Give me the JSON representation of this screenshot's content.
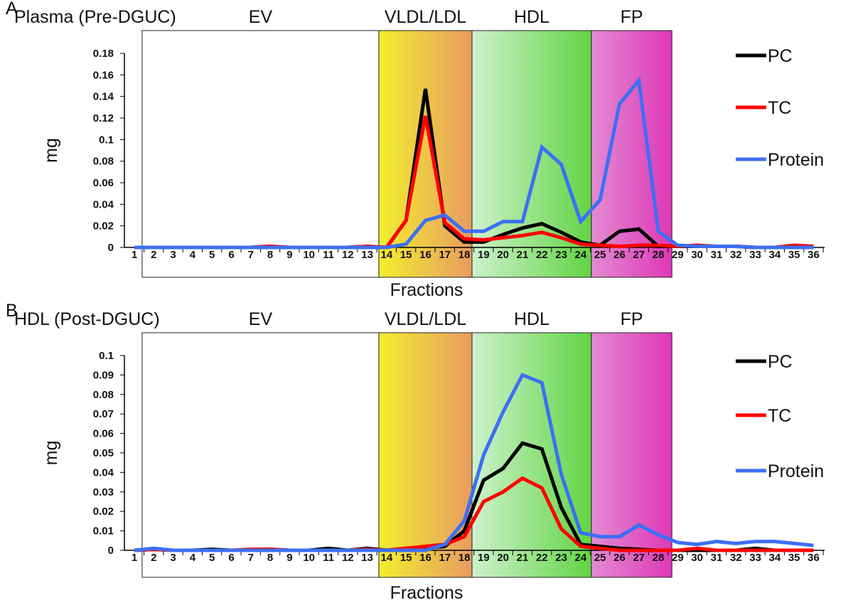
{
  "chart_data": [
    {
      "type": "line",
      "panel_letter": "A",
      "title": "Plasma (Pre-DGUC)",
      "xlabel": "Fractions",
      "ylabel": "mg",
      "ylim": [
        0,
        0.18
      ],
      "yticks": [
        "0",
        "0.02",
        "0.04",
        "0.06",
        "0.08",
        "0.1",
        "0.12",
        "0.14",
        "0.16",
        "0.18"
      ],
      "ytick_values": [
        0,
        0.02,
        0.04,
        0.06,
        0.08,
        0.1,
        0.12,
        0.14,
        0.16,
        0.18
      ],
      "x": [
        1,
        2,
        3,
        4,
        5,
        6,
        7,
        8,
        9,
        10,
        11,
        12,
        13,
        14,
        15,
        16,
        17,
        18,
        19,
        20,
        21,
        22,
        23,
        24,
        25,
        26,
        27,
        28,
        29,
        30,
        31,
        32,
        33,
        34,
        35,
        36
      ],
      "regions": [
        {
          "label": "EV",
          "from": 1.4,
          "to": 13.6
        },
        {
          "label": "VLDL/LDL",
          "from": 13.6,
          "to": 18.4
        },
        {
          "label": "HDL",
          "from": 18.4,
          "to": 24.55
        },
        {
          "label": "FP",
          "from": 24.55,
          "to": 28.7
        }
      ],
      "legend_position": "right",
      "series": [
        {
          "name": "PC",
          "color": "#000000",
          "values": [
            0,
            0,
            0,
            0,
            0,
            0,
            0,
            0.001,
            0,
            0,
            0,
            0,
            0.001,
            0,
            0.025,
            0.147,
            0.02,
            0.005,
            0.005,
            0.012,
            0.018,
            0.022,
            0.014,
            0.005,
            0.002,
            0.015,
            0.017,
            0.001,
            0.001,
            0.001,
            0.001,
            0.001,
            0,
            0,
            0.001,
            0.001
          ]
        },
        {
          "name": "TC",
          "color": "#ff0000",
          "values": [
            0,
            0,
            0,
            0,
            0,
            0,
            0,
            0.001,
            0,
            0,
            0,
            0,
            0.001,
            0,
            0.025,
            0.122,
            0.023,
            0.008,
            0.007,
            0.009,
            0.011,
            0.014,
            0.009,
            0.003,
            0.002,
            0.001,
            0.002,
            0.002,
            0.001,
            0.002,
            0.001,
            0.001,
            0,
            0,
            0.002,
            0.001
          ]
        },
        {
          "name": "Protein",
          "color": "#3d6ff5",
          "values": [
            0,
            0,
            0,
            0,
            0,
            0,
            0,
            0,
            0,
            0,
            0,
            0,
            0,
            0,
            0.003,
            0.025,
            0.03,
            0.015,
            0.015,
            0.024,
            0.024,
            0.093,
            0.077,
            0.024,
            0.044,
            0.133,
            0.155,
            0.015,
            0.002,
            0.001,
            0.001,
            0.001,
            0,
            0,
            0,
            0
          ]
        }
      ]
    },
    {
      "type": "line",
      "panel_letter": "B",
      "title": "HDL (Post-DGUC)",
      "xlabel": "Fractions",
      "ylabel": "mg",
      "ylim": [
        0,
        0.1
      ],
      "yticks": [
        "0",
        "0.01",
        "0.02",
        "0.03",
        "0.04",
        "0.05",
        "0.06",
        "0.07",
        "0.08",
        "0.09",
        "0.1"
      ],
      "ytick_values": [
        0,
        0.01,
        0.02,
        0.03,
        0.04,
        0.05,
        0.06,
        0.07,
        0.08,
        0.09,
        0.1
      ],
      "x": [
        1,
        2,
        3,
        4,
        5,
        6,
        7,
        8,
        9,
        10,
        11,
        12,
        13,
        14,
        15,
        16,
        17,
        18,
        19,
        20,
        21,
        22,
        23,
        24,
        25,
        26,
        27,
        28,
        29,
        30,
        31,
        32,
        33,
        34,
        35,
        36
      ],
      "regions": [
        {
          "label": "EV",
          "from": 1.4,
          "to": 13.6
        },
        {
          "label": "VLDL/LDL",
          "from": 13.6,
          "to": 18.4
        },
        {
          "label": "HDL",
          "from": 18.4,
          "to": 24.55
        },
        {
          "label": "FP",
          "from": 24.55,
          "to": 28.7
        }
      ],
      "legend_position": "right",
      "series": [
        {
          "name": "PC",
          "color": "#000000",
          "values": [
            0,
            0.0005,
            0,
            0,
            0.0005,
            0,
            0,
            0.0005,
            0,
            0,
            0.001,
            0,
            0.001,
            0,
            0.001,
            0.001,
            0.002,
            0.01,
            0.036,
            0.042,
            0.055,
            0.052,
            0.022,
            0.003,
            0.002,
            0.001,
            0.0005,
            0,
            0,
            0,
            0,
            0,
            0.001,
            0,
            0,
            0
          ]
        },
        {
          "name": "TC",
          "color": "#ff0000",
          "values": [
            0,
            0.0005,
            0,
            0,
            0,
            0,
            0.0005,
            0.0005,
            0,
            0,
            0,
            0,
            0.0005,
            0,
            0.001,
            0.002,
            0.003,
            0.007,
            0.025,
            0.03,
            0.037,
            0.032,
            0.011,
            0.002,
            0.001,
            0,
            0,
            0,
            0,
            0.001,
            0,
            0,
            0,
            0,
            0,
            0
          ]
        },
        {
          "name": "Protein",
          "color": "#3d6ff5",
          "values": [
            0,
            0.001,
            0,
            0,
            0,
            0,
            0,
            0,
            0,
            0,
            0,
            0,
            0,
            0,
            0,
            0,
            0.003,
            0.015,
            0.049,
            0.071,
            0.09,
            0.086,
            0.039,
            0.009,
            0.007,
            0.007,
            0.013,
            0.008,
            0.004,
            0.003,
            0.0045,
            0.0035,
            0.0045,
            0.0045,
            0.0035,
            0.0025
          ]
        }
      ]
    }
  ]
}
